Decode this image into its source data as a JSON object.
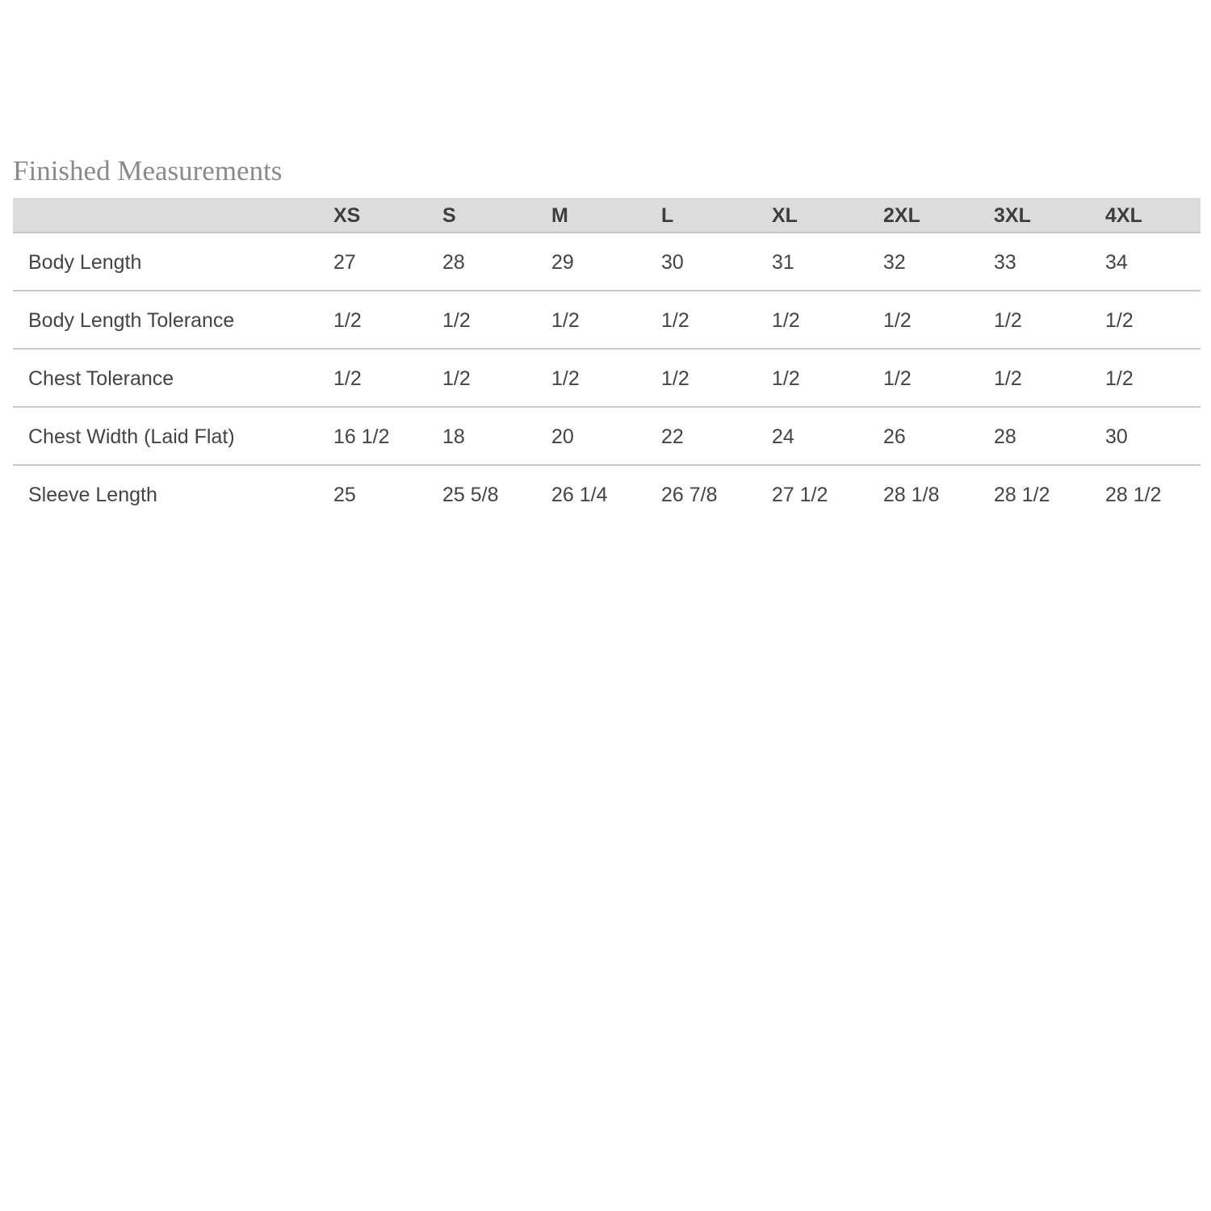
{
  "title": "Finished Measurements",
  "columns": [
    "",
    "XS",
    "S",
    "M",
    "L",
    "XL",
    "2XL",
    "3XL",
    "4XL"
  ],
  "rows": [
    {
      "label": "Body Length",
      "values": [
        "27",
        "28",
        "29",
        "30",
        "31",
        "32",
        "33",
        "34"
      ]
    },
    {
      "label": "Body Length Tolerance",
      "values": [
        "1/2",
        "1/2",
        "1/2",
        "1/2",
        "1/2",
        "1/2",
        "1/2",
        "1/2"
      ]
    },
    {
      "label": "Chest Tolerance",
      "values": [
        "1/2",
        "1/2",
        "1/2",
        "1/2",
        "1/2",
        "1/2",
        "1/2",
        "1/2"
      ]
    },
    {
      "label": "Chest Width (Laid Flat)",
      "values": [
        "16 1/2",
        "18",
        "20",
        "22",
        "24",
        "26",
        "28",
        "30"
      ]
    },
    {
      "label": "Sleeve Length",
      "values": [
        "25",
        "25 5/8",
        "26 1/4",
        "26 7/8",
        "27 1/2",
        "28 1/8",
        "28 1/2",
        "28 1/2"
      ]
    }
  ],
  "colors": {
    "header_bg": "#dcdcdc",
    "text": "#444444",
    "title": "#8a8a8a"
  }
}
